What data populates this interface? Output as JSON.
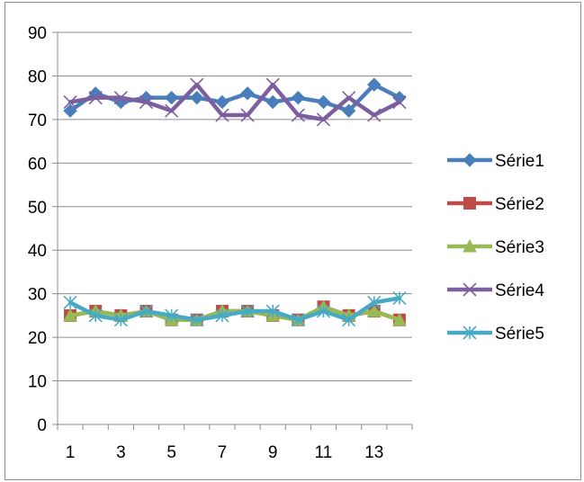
{
  "chart_data": {
    "type": "line",
    "title": "",
    "xlabel": "",
    "ylabel": "",
    "x": [
      1,
      2,
      3,
      4,
      5,
      6,
      7,
      8,
      9,
      10,
      11,
      12,
      13,
      14
    ],
    "x_tick_labels": [
      "1",
      "3",
      "5",
      "7",
      "9",
      "11",
      "13"
    ],
    "y_tick_labels": [
      "0",
      "10",
      "20",
      "30",
      "40",
      "50",
      "60",
      "70",
      "80",
      "90"
    ],
    "ylim": [
      0,
      90
    ],
    "grid": true,
    "legend_position": "right",
    "series": [
      {
        "name": "Série1",
        "color": "#4a7ebb",
        "marker": "diamond",
        "values": [
          72,
          76,
          74,
          75,
          75,
          75,
          74,
          76,
          74,
          75,
          74,
          72,
          78,
          75
        ]
      },
      {
        "name": "Série2",
        "color": "#be4b48",
        "marker": "square",
        "values": [
          25,
          26,
          25,
          26,
          24,
          24,
          26,
          26,
          25,
          24,
          27,
          25,
          26,
          24
        ]
      },
      {
        "name": "Série3",
        "color": "#98b954",
        "marker": "triangle",
        "values": [
          25,
          26,
          25,
          26,
          24,
          24,
          26,
          26,
          25,
          24,
          27,
          25,
          26,
          24
        ]
      },
      {
        "name": "Série4",
        "color": "#7d5fa0",
        "marker": "x",
        "values": [
          74,
          75,
          75,
          74,
          72,
          78,
          71,
          71,
          78,
          71,
          70,
          75,
          71,
          74
        ]
      },
      {
        "name": "Série5",
        "color": "#46aac5",
        "marker": "star",
        "values": [
          28,
          25,
          24,
          26,
          25,
          24,
          25,
          26,
          26,
          24,
          26,
          24,
          28,
          29
        ]
      }
    ]
  }
}
